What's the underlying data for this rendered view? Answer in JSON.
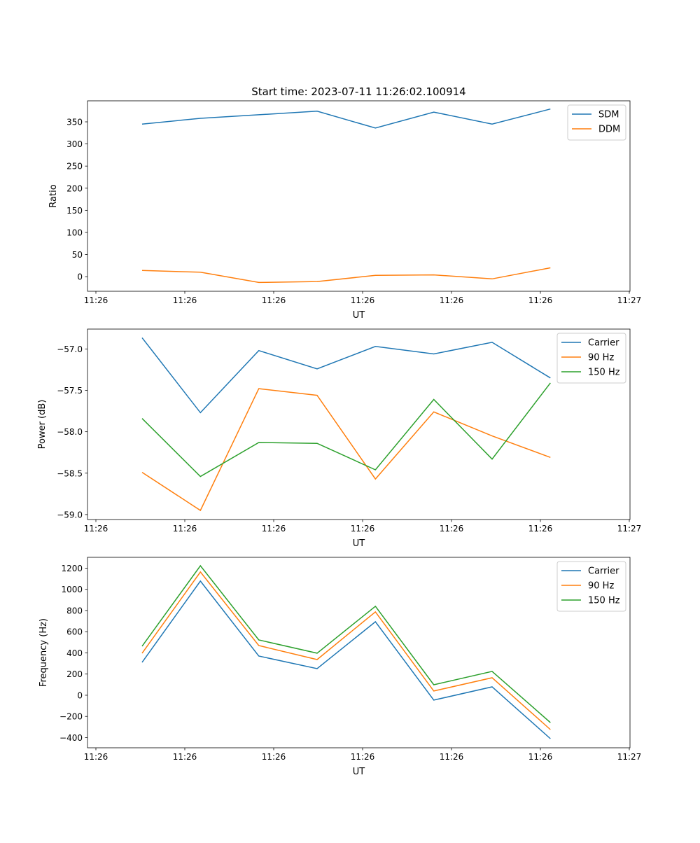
{
  "chart_data": [
    {
      "type": "line",
      "title": "Start time: 2023-07-11 11:26:02.100914",
      "xlabel": "UT",
      "ylabel": "Ratio",
      "x": [
        0,
        1,
        2,
        3,
        4,
        5,
        6,
        7
      ],
      "xlim": [
        -0.936,
        8.364
      ],
      "xticks": [
        -0.792,
        0.732,
        2.256,
        3.78,
        5.304,
        6.828,
        8.352
      ],
      "xtick_labels": [
        "11:26",
        "11:26",
        "11:26",
        "11:26",
        "11:26",
        "11:26",
        "11:27"
      ],
      "ylim": [
        -33,
        397.5
      ],
      "yticks": [
        0,
        50,
        100,
        150,
        200,
        250,
        300,
        350
      ],
      "ytick_labels": [
        "0",
        "50",
        "100",
        "150",
        "200",
        "250",
        "300",
        "350"
      ],
      "legend": "top-right",
      "series": [
        {
          "name": "SDM",
          "color": "#1f77b4",
          "values": [
            345,
            358,
            366,
            374,
            336,
            372,
            345,
            379
          ]
        },
        {
          "name": "DDM",
          "color": "#ff7f0e",
          "values": [
            14,
            10,
            -13,
            -11,
            3,
            4,
            -5,
            20
          ]
        }
      ]
    },
    {
      "type": "line",
      "title": "",
      "xlabel": "UT",
      "ylabel": "Power (dB)",
      "x": [
        0,
        1,
        2,
        3,
        4,
        5,
        6,
        7
      ],
      "xlim": [
        -0.936,
        8.364
      ],
      "xticks": [
        -0.792,
        0.732,
        2.256,
        3.78,
        5.304,
        6.828,
        8.352
      ],
      "xtick_labels": [
        "11:26",
        "11:26",
        "11:26",
        "11:26",
        "11:26",
        "11:26",
        "11:27"
      ],
      "ylim": [
        -59.06,
        -56.76
      ],
      "yticks": [
        -59.0,
        -58.5,
        -58.0,
        -57.5,
        -57.0
      ],
      "ytick_labels": [
        "−59.0",
        "−58.5",
        "−58.0",
        "−57.5",
        "−57.0"
      ],
      "legend": "top-right",
      "series": [
        {
          "name": "Carrier",
          "color": "#1f77b4",
          "values": [
            -56.865,
            -57.77,
            -57.02,
            -57.24,
            -56.97,
            -57.06,
            -56.92,
            -57.35
          ]
        },
        {
          "name": "90 Hz",
          "color": "#ff7f0e",
          "values": [
            -58.49,
            -58.95,
            -57.48,
            -57.56,
            -58.57,
            -57.76,
            -58.05,
            -58.31
          ]
        },
        {
          "name": "150 Hz",
          "color": "#2ca02c",
          "values": [
            -57.84,
            -58.54,
            -58.13,
            -58.14,
            -58.46,
            -57.61,
            -58.33,
            -57.41
          ]
        }
      ]
    },
    {
      "type": "line",
      "title": "",
      "xlabel": "UT",
      "ylabel": "Frequency (Hz)",
      "x": [
        0,
        1,
        2,
        3,
        4,
        5,
        6,
        7
      ],
      "xlim": [
        -0.936,
        8.364
      ],
      "xticks": [
        -0.792,
        0.732,
        2.256,
        3.78,
        5.304,
        6.828,
        8.352
      ],
      "xtick_labels": [
        "11:26",
        "11:26",
        "11:26",
        "11:26",
        "11:26",
        "11:26",
        "11:27"
      ],
      "ylim": [
        -496,
        1302
      ],
      "yticks": [
        -400,
        -200,
        0,
        200,
        400,
        600,
        800,
        1000,
        1200
      ],
      "ytick_labels": [
        "−400",
        "−200",
        "0",
        "200",
        "400",
        "600",
        "800",
        "1000",
        "1200"
      ],
      "legend": "top-right",
      "series": [
        {
          "name": "Carrier",
          "color": "#1f77b4",
          "values": [
            311,
            1078,
            370,
            251,
            694,
            -46,
            79,
            -410
          ]
        },
        {
          "name": "90 Hz",
          "color": "#ff7f0e",
          "values": [
            397,
            1164,
            469,
            337,
            787,
            40,
            165,
            -324
          ]
        },
        {
          "name": "150 Hz",
          "color": "#2ca02c",
          "values": [
            463,
            1223,
            522,
            397,
            840,
            99,
            225,
            -258
          ]
        }
      ]
    }
  ]
}
